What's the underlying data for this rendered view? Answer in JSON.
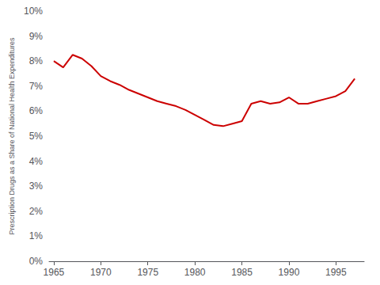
{
  "chart_data": {
    "type": "line",
    "x": [
      1965,
      1966,
      1967,
      1968,
      1969,
      1970,
      1971,
      1972,
      1973,
      1974,
      1975,
      1976,
      1977,
      1978,
      1979,
      1980,
      1981,
      1982,
      1983,
      1984,
      1985,
      1986,
      1987,
      1988,
      1989,
      1990,
      1991,
      1992,
      1993,
      1994,
      1995,
      1996,
      1997
    ],
    "values": [
      8.0,
      7.75,
      8.25,
      8.1,
      7.8,
      7.4,
      7.2,
      7.05,
      6.85,
      6.7,
      6.55,
      6.4,
      6.3,
      6.2,
      6.05,
      5.85,
      5.65,
      5.45,
      5.4,
      5.5,
      5.6,
      6.3,
      6.4,
      6.3,
      6.35,
      6.55,
      6.3,
      6.3,
      6.4,
      6.5,
      6.6,
      6.8,
      7.3
    ],
    "color": "#cc0000",
    "ylabel": "Prescription Drugs as a Share of National Health Expenditures",
    "xlim": [
      1964.5,
      1998
    ],
    "ylim": [
      0,
      10
    ],
    "xticks": [
      1965,
      1970,
      1975,
      1980,
      1985,
      1990,
      1995
    ],
    "yticks": [
      {
        "value": 0,
        "label": "0%"
      },
      {
        "value": 1,
        "label": "1%"
      },
      {
        "value": 2,
        "label": "2%"
      },
      {
        "value": 3,
        "label": "3%"
      },
      {
        "value": 4,
        "label": "4%"
      },
      {
        "value": 5,
        "label": "5%"
      },
      {
        "value": 6,
        "label": "6%"
      },
      {
        "value": 7,
        "label": "7%"
      },
      {
        "value": 8,
        "label": "8%"
      },
      {
        "value": 9,
        "label": "9%"
      },
      {
        "value": 10,
        "label": "10%"
      }
    ],
    "grid": false
  }
}
